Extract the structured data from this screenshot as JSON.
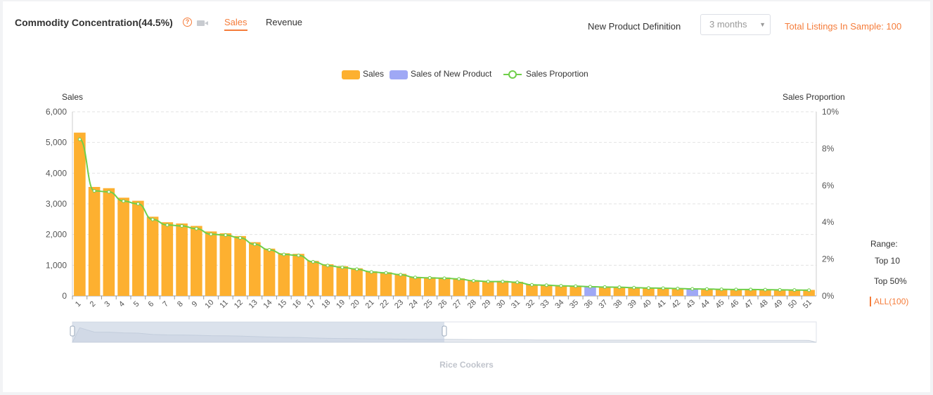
{
  "header": {
    "title": "Commodity Concentration(44.5%)",
    "tabs": [
      {
        "label": "Sales",
        "active": true
      },
      {
        "label": "Revenue",
        "active": false
      }
    ],
    "new_product_label": "New Product Definition",
    "new_product_value": "3 months",
    "total_listings": "Total Listings In Sample: 100"
  },
  "range": {
    "label": "Range:",
    "options": [
      "Top 10",
      "Top 50%",
      "ALL(100)"
    ],
    "selected": "ALL(100)"
  },
  "footer_caption": "Rice Cookers",
  "colors": {
    "sales": "#fdb030",
    "new_product": "#9fa8f5",
    "proportion": "#6fcf4a",
    "accent": "#f57c3a"
  },
  "icons": {
    "help": "help-circle-icon",
    "video": "video-camera-icon",
    "select": "chevron-down-icon"
  },
  "chart_data": {
    "type": "bar",
    "legend": [
      "Sales",
      "Sales of New Product",
      "Sales Proportion"
    ],
    "legend_position": "top-center",
    "ylabel": "Sales",
    "y2label": "Sales Proportion",
    "ylim": [
      0,
      6000
    ],
    "y2lim": [
      0,
      10
    ],
    "yticks": [
      "0",
      "1,000",
      "2,000",
      "3,000",
      "4,000",
      "5,000",
      "6,000"
    ],
    "y2ticks": [
      "0%",
      "2%",
      "4%",
      "6%",
      "8%",
      "10%"
    ],
    "grid": true,
    "categories": [
      "1",
      "2",
      "3",
      "4",
      "5",
      "6",
      "7",
      "8",
      "9",
      "10",
      "11",
      "12",
      "13",
      "14",
      "15",
      "16",
      "17",
      "18",
      "19",
      "20",
      "21",
      "22",
      "23",
      "24",
      "25",
      "26",
      "27",
      "28",
      "29",
      "30",
      "31",
      "32",
      "33",
      "34",
      "35",
      "36",
      "37",
      "38",
      "39",
      "40",
      "41",
      "42",
      "43",
      "44",
      "45",
      "46",
      "47",
      "48",
      "49",
      "50",
      "51"
    ],
    "series": [
      {
        "name": "Sales",
        "values": [
          5320,
          3550,
          3510,
          3200,
          3100,
          2580,
          2400,
          2360,
          2280,
          2100,
          2040,
          1950,
          1750,
          1540,
          1390,
          1370,
          1140,
          1030,
          970,
          900,
          800,
          770,
          720,
          620,
          610,
          600,
          570,
          510,
          480,
          490,
          460,
          370,
          360,
          340,
          330,
          0,
          300,
          290,
          280,
          270,
          260,
          250,
          0,
          230,
          225,
          220,
          215,
          210,
          205,
          200,
          195
        ]
      },
      {
        "name": "Sales of New Product",
        "values": [
          0,
          0,
          0,
          0,
          0,
          0,
          0,
          0,
          0,
          0,
          0,
          0,
          0,
          0,
          0,
          0,
          0,
          0,
          0,
          0,
          0,
          0,
          0,
          0,
          0,
          0,
          0,
          0,
          0,
          0,
          0,
          0,
          0,
          0,
          0,
          320,
          0,
          0,
          0,
          0,
          0,
          0,
          240,
          0,
          0,
          0,
          0,
          0,
          0,
          0,
          0
        ]
      },
      {
        "name": "Sales Proportion",
        "values": [
          8.5,
          5.7,
          5.65,
          5.15,
          5.0,
          4.15,
          3.85,
          3.8,
          3.65,
          3.35,
          3.3,
          3.15,
          2.8,
          2.5,
          2.25,
          2.2,
          1.85,
          1.65,
          1.55,
          1.45,
          1.3,
          1.25,
          1.15,
          1.0,
          0.98,
          0.96,
          0.92,
          0.82,
          0.78,
          0.78,
          0.74,
          0.6,
          0.58,
          0.55,
          0.53,
          0.5,
          0.48,
          0.47,
          0.45,
          0.43,
          0.42,
          0.4,
          0.38,
          0.37,
          0.36,
          0.35,
          0.35,
          0.34,
          0.33,
          0.32,
          0.31
        ]
      }
    ],
    "zoom_window": [
      0,
      50
    ]
  }
}
